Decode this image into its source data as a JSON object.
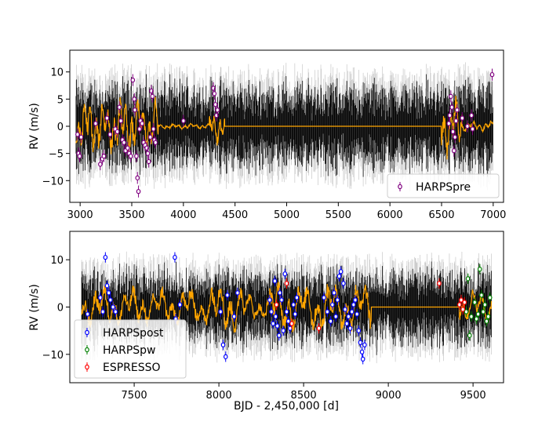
{
  "chart_data": [
    {
      "type": "scatter",
      "panel": "top",
      "title": "",
      "xlabel": "",
      "ylabel": "RV (m/s)",
      "xlim": [
        2900,
        7100
      ],
      "ylim": [
        -14,
        14
      ],
      "x_ticks": [
        3000,
        3500,
        4000,
        4500,
        5000,
        5500,
        6000,
        6500,
        7000
      ],
      "y_ticks": [
        -10,
        -5,
        0,
        5,
        10
      ],
      "x_tick_labels": [
        "3000",
        "3500",
        "4000",
        "4500",
        "5000",
        "5500",
        "6000",
        "6500",
        "7000"
      ],
      "y_tick_labels": [
        "−10",
        "−5",
        "0",
        "5",
        "10"
      ],
      "legend_position": "lower-right",
      "model": {
        "color": "#FFA500",
        "description": "GP model"
      },
      "series": [
        {
          "name": "HARPSpre",
          "color": "#800080",
          "points": [
            [
              2975,
              -1.5
            ],
            [
              2985,
              -5.0
            ],
            [
              2995,
              -5.5
            ],
            [
              3010,
              -2.0
            ],
            [
              3150,
              0.5
            ],
            [
              3195,
              -7.0
            ],
            [
              3215,
              -6.0
            ],
            [
              3230,
              -5.5
            ],
            [
              3260,
              1.5
            ],
            [
              3290,
              -1.5
            ],
            [
              3340,
              -0.5
            ],
            [
              3360,
              -1.0
            ],
            [
              3380,
              3.5
            ],
            [
              3395,
              1.0
            ],
            [
              3410,
              -2.5
            ],
            [
              3425,
              -3.0
            ],
            [
              3440,
              -4.5
            ],
            [
              3460,
              -4.0
            ],
            [
              3475,
              -5.0
            ],
            [
              3490,
              -5.5
            ],
            [
              3510,
              8.5
            ],
            [
              3525,
              5.0
            ],
            [
              3530,
              3.0
            ],
            [
              3545,
              -5.5
            ],
            [
              3555,
              -9.5
            ],
            [
              3565,
              -12.0
            ],
            [
              3575,
              -0.5
            ],
            [
              3585,
              1.0
            ],
            [
              3600,
              0.5
            ],
            [
              3615,
              -3.0
            ],
            [
              3630,
              -3.5
            ],
            [
              3645,
              -4.0
            ],
            [
              3655,
              -5.0
            ],
            [
              3665,
              -6.5
            ],
            [
              3680,
              -2.0
            ],
            [
              3690,
              6.5
            ],
            [
              3700,
              5.5
            ],
            [
              3710,
              -0.5
            ],
            [
              3720,
              -2.5
            ],
            [
              3730,
              -3.0
            ],
            [
              4000,
              1.0
            ],
            [
              4290,
              7.0
            ],
            [
              4300,
              6.0
            ],
            [
              4310,
              4.0
            ],
            [
              4320,
              2.0
            ],
            [
              4330,
              3.0
            ],
            [
              6570,
              0.5
            ],
            [
              6580,
              2.0
            ],
            [
              6590,
              5.5
            ],
            [
              6600,
              3.5
            ],
            [
              6610,
              -1.0
            ],
            [
              6620,
              -4.5
            ],
            [
              6630,
              -2.0
            ],
            [
              6640,
              1.0
            ],
            [
              6650,
              3.0
            ],
            [
              6700,
              1.5
            ],
            [
              6750,
              0.0
            ],
            [
              6790,
              2.0
            ],
            [
              6800,
              -0.5
            ],
            [
              6990,
              9.5
            ]
          ]
        }
      ]
    },
    {
      "type": "scatter",
      "panel": "bottom",
      "title": "",
      "xlabel": "BJD - 2,450,000 [d]",
      "ylabel": "RV (m/s)",
      "xlim": [
        7120,
        9680
      ],
      "ylim": [
        -16,
        16
      ],
      "x_ticks": [
        7500,
        8000,
        8500,
        9000,
        9500
      ],
      "y_ticks": [
        -10,
        0,
        10
      ],
      "x_tick_labels": [
        "7500",
        "8000",
        "8500",
        "9000",
        "9500"
      ],
      "y_tick_labels": [
        "−10",
        "0",
        "10"
      ],
      "legend_position": "lower-left",
      "model": {
        "color": "#FFA500",
        "description": "GP model"
      },
      "series": [
        {
          "name": "HARPSpost",
          "color": "#0000FF",
          "points": [
            [
              7225,
              -1.5
            ],
            [
              7300,
              2.0
            ],
            [
              7315,
              -1.0
            ],
            [
              7330,
              10.5
            ],
            [
              7340,
              4.5
            ],
            [
              7350,
              3.0
            ],
            [
              7360,
              1.5
            ],
            [
              7375,
              0.0
            ],
            [
              7390,
              -1.0
            ],
            [
              7740,
              10.5
            ],
            [
              7745,
              -2.5
            ],
            [
              7770,
              0.5
            ],
            [
              8010,
              -1.0
            ],
            [
              8025,
              -8.0
            ],
            [
              8040,
              -10.5
            ],
            [
              8050,
              2.5
            ],
            [
              8090,
              -2.0
            ],
            [
              8110,
              3.0
            ],
            [
              8300,
              1.5
            ],
            [
              8310,
              -1.0
            ],
            [
              8320,
              -3.5
            ],
            [
              8330,
              5.5
            ],
            [
              8335,
              -2.0
            ],
            [
              8345,
              -4.0
            ],
            [
              8355,
              -6.0
            ],
            [
              8360,
              3.0
            ],
            [
              8370,
              1.5
            ],
            [
              8380,
              -5.0
            ],
            [
              8390,
              7.0
            ],
            [
              8400,
              -1.0
            ],
            [
              8410,
              -3.0
            ],
            [
              8420,
              -4.5
            ],
            [
              8440,
              0.5
            ],
            [
              8450,
              -1.5
            ],
            [
              8460,
              2.0
            ],
            [
              8620,
              2.0
            ],
            [
              8640,
              -1.0
            ],
            [
              8660,
              -3.0
            ],
            [
              8670,
              0.5
            ],
            [
              8680,
              3.0
            ],
            [
              8690,
              -2.0
            ],
            [
              8700,
              1.5
            ],
            [
              8710,
              6.5
            ],
            [
              8720,
              7.5
            ],
            [
              8735,
              5.0
            ],
            [
              8745,
              -0.5
            ],
            [
              8755,
              -3.5
            ],
            [
              8765,
              -2.0
            ],
            [
              8775,
              -4.5
            ],
            [
              8785,
              -1.0
            ],
            [
              8795,
              0.5
            ],
            [
              8805,
              1.5
            ],
            [
              8815,
              -1.5
            ],
            [
              8825,
              -5.0
            ],
            [
              8835,
              -7.5
            ],
            [
              8845,
              -9.5
            ],
            [
              8850,
              -11.0
            ],
            [
              8860,
              -8.0
            ]
          ]
        },
        {
          "name": "HARPSpw",
          "color": "#008000",
          "points": [
            [
              9460,
              -1.0
            ],
            [
              9470,
              6.0
            ],
            [
              9480,
              -6.0
            ],
            [
              9490,
              -2.0
            ],
            [
              9510,
              1.0
            ],
            [
              9520,
              -2.5
            ],
            [
              9530,
              -1.5
            ],
            [
              9540,
              8.0
            ],
            [
              9550,
              2.5
            ],
            [
              9560,
              -1.0
            ],
            [
              9570,
              0.5
            ],
            [
              9580,
              -3.0
            ],
            [
              9590,
              -2.0
            ],
            [
              9600,
              2.0
            ]
          ]
        },
        {
          "name": "ESPRESSO",
          "color": "#FF0000",
          "points": [
            [
              8340,
              0.5
            ],
            [
              8400,
              5.0
            ],
            [
              8430,
              -3.5
            ],
            [
              8590,
              -4.5
            ],
            [
              9300,
              5.0
            ],
            [
              9420,
              0.5
            ],
            [
              9430,
              1.5
            ],
            [
              9440,
              -0.5
            ],
            [
              9450,
              1.0
            ]
          ]
        }
      ]
    }
  ]
}
